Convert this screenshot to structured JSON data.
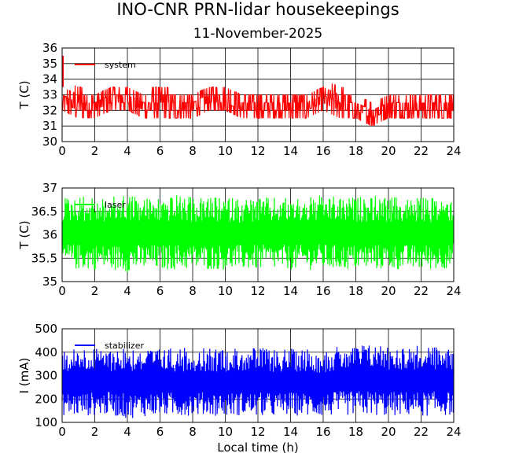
{
  "title": "INO-CNR PRN-lidar housekeepings",
  "subtitle": "11-November-2025",
  "xlabel": "Local time (h)",
  "chart_data": [
    {
      "type": "line",
      "name": "panel-system",
      "ylabel": "T (C)",
      "xlim": [
        0,
        24
      ],
      "ylim": [
        30,
        36
      ],
      "xticks": [
        0,
        2,
        4,
        6,
        8,
        10,
        12,
        14,
        16,
        18,
        20,
        22,
        24
      ],
      "yticks": [
        30,
        31,
        32,
        33,
        34,
        35,
        36
      ],
      "grid": true,
      "legend_position": "top-left",
      "series": [
        {
          "name": "system",
          "color": "#ff0000",
          "x": [
            0,
            1,
            2,
            3,
            4,
            5,
            6,
            7,
            8,
            9,
            10,
            11,
            12,
            13,
            14,
            15,
            16,
            17,
            18,
            19,
            20,
            21,
            22,
            23,
            24
          ],
          "y_min": [
            32.0,
            31.5,
            31.5,
            32.0,
            32.0,
            31.5,
            31.5,
            31.5,
            31.5,
            32.0,
            32.0,
            31.5,
            31.5,
            31.5,
            31.5,
            31.5,
            32.0,
            31.5,
            31.5,
            31.0,
            31.5,
            31.5,
            31.5,
            31.5,
            31.5
          ],
          "y_max": [
            33.0,
            33.5,
            33.0,
            33.5,
            33.5,
            33.0,
            33.5,
            33.0,
            33.0,
            33.5,
            33.5,
            33.0,
            33.0,
            33.0,
            33.0,
            33.0,
            33.5,
            33.5,
            32.5,
            32.5,
            33.0,
            33.0,
            33.0,
            33.0,
            33.0
          ],
          "notes_shown": [
            {
              "x": 0.0,
              "y": 35.5
            }
          ]
        }
      ]
    },
    {
      "type": "line",
      "name": "panel-laser",
      "ylabel": "T (C)",
      "xlim": [
        0,
        24
      ],
      "ylim": [
        35,
        37
      ],
      "xticks": [
        0,
        2,
        4,
        6,
        8,
        10,
        12,
        14,
        16,
        18,
        20,
        22,
        24
      ],
      "yticks": [
        35,
        35.5,
        36,
        36.5,
        37
      ],
      "grid": true,
      "legend_position": "top-left",
      "series": [
        {
          "name": "laser",
          "color": "#00ff00",
          "x": [
            0,
            1,
            2,
            3,
            4,
            5,
            6,
            7,
            8,
            9,
            10,
            11,
            12,
            13,
            14,
            15,
            16,
            17,
            18,
            19,
            20,
            21,
            22,
            23,
            24
          ],
          "y_min": [
            35.3,
            35.25,
            35.25,
            35.25,
            35.2,
            35.25,
            35.25,
            35.25,
            35.25,
            35.25,
            35.25,
            35.25,
            35.25,
            35.25,
            35.25,
            35.25,
            35.25,
            35.25,
            35.25,
            35.25,
            35.25,
            35.25,
            35.25,
            35.25,
            35.3
          ],
          "y_max": [
            36.8,
            36.85,
            36.8,
            36.8,
            36.9,
            36.8,
            36.8,
            36.85,
            36.8,
            36.8,
            36.8,
            36.8,
            36.8,
            36.8,
            36.8,
            36.8,
            36.85,
            36.8,
            36.8,
            36.85,
            36.8,
            36.8,
            36.8,
            36.8,
            36.8
          ]
        }
      ]
    },
    {
      "type": "line",
      "name": "panel-stabilizer",
      "ylabel": "I (mA)",
      "xlim": [
        0,
        24
      ],
      "ylim": [
        100,
        500
      ],
      "xticks": [
        0,
        2,
        4,
        6,
        8,
        10,
        12,
        14,
        16,
        18,
        20,
        22,
        24
      ],
      "yticks": [
        100,
        200,
        300,
        400,
        500
      ],
      "grid": true,
      "legend_position": "top-left",
      "series": [
        {
          "name": "stabilizer",
          "color": "#0000ff",
          "x": [
            0,
            1,
            2,
            3,
            4,
            5,
            6,
            7,
            8,
            9,
            10,
            11,
            12,
            13,
            14,
            15,
            16,
            17,
            18,
            19,
            20,
            21,
            22,
            23,
            24
          ],
          "y_min": [
            130,
            125,
            130,
            130,
            115,
            125,
            130,
            125,
            130,
            130,
            125,
            130,
            125,
            125,
            130,
            125,
            125,
            130,
            130,
            130,
            125,
            130,
            125,
            130,
            130
          ],
          "y_max": [
            410,
            420,
            415,
            420,
            425,
            415,
            415,
            420,
            420,
            415,
            420,
            420,
            420,
            415,
            415,
            420,
            410,
            425,
            430,
            440,
            430,
            425,
            430,
            425,
            420
          ]
        }
      ]
    }
  ]
}
